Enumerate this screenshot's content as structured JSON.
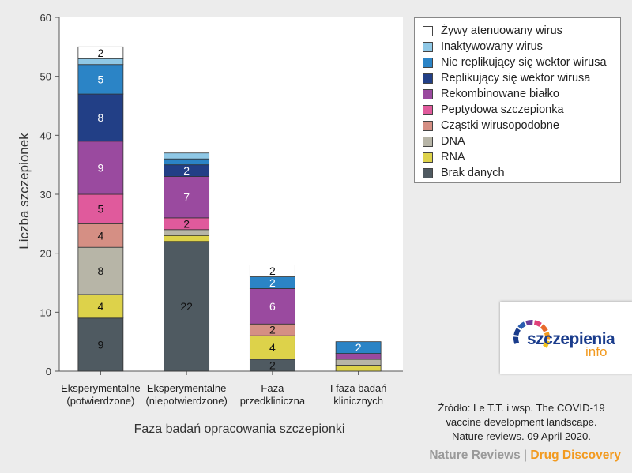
{
  "chart_data": {
    "type": "bar",
    "stacked": true,
    "xlabel": "Faza badań opracowania szczepionki",
    "ylabel": "Liczba szczepionek",
    "ylim": [
      0,
      60
    ],
    "yticks": [
      0,
      10,
      20,
      30,
      40,
      50,
      60
    ],
    "categories": [
      [
        "Eksperymentalne",
        "(potwierdzone)"
      ],
      [
        "Eksperymentalne",
        "(niepotwierdzone)"
      ],
      [
        "Faza",
        "przedkliniczna"
      ],
      [
        "I faza badań",
        "klinicznych"
      ]
    ],
    "series": [
      {
        "name": "Brak danych",
        "color": "#4f5a61",
        "values": [
          9,
          22,
          2,
          0
        ],
        "labels": [
          "9",
          "22",
          "2",
          ""
        ]
      },
      {
        "name": "RNA",
        "color": "#ddd24a",
        "values": [
          4,
          1,
          4,
          1
        ],
        "labels": [
          "4",
          "",
          "4",
          ""
        ]
      },
      {
        "name": "DNA",
        "color": "#b7b5a7",
        "values": [
          8,
          1,
          0,
          1
        ],
        "labels": [
          "8",
          "",
          "",
          ""
        ]
      },
      {
        "name": "Cząstki wirusopodobne",
        "color": "#d58f84",
        "values": [
          4,
          0,
          2,
          0
        ],
        "labels": [
          "4",
          "",
          "2",
          ""
        ]
      },
      {
        "name": "Peptydowa szczepionka",
        "color": "#e05a9c",
        "values": [
          5,
          2,
          0,
          0
        ],
        "labels": [
          "5",
          "2",
          "",
          ""
        ]
      },
      {
        "name": "Rekombinowane białko",
        "color": "#9a4a9f",
        "values": [
          9,
          7,
          6,
          1
        ],
        "labels": [
          "9",
          "7",
          "6",
          ""
        ]
      },
      {
        "name": "Replikujący się wektor wirusa",
        "color": "#223f86",
        "values": [
          8,
          2,
          0,
          0
        ],
        "labels": [
          "8",
          "2",
          "",
          ""
        ]
      },
      {
        "name": "Nie replikujący się wektor wirusa",
        "color": "#2b84c6",
        "values": [
          5,
          1,
          2,
          2
        ],
        "labels": [
          "5",
          "",
          "2",
          "2"
        ]
      },
      {
        "name": "Inaktywowany wirus",
        "color": "#8fc8e6",
        "values": [
          1,
          1,
          0,
          0
        ],
        "labels": [
          "",
          "",
          "",
          ""
        ]
      },
      {
        "name": "Żywy atenuowany wirus",
        "color": "#ffffff",
        "values": [
          2,
          0,
          2,
          0
        ],
        "labels": [
          "2",
          "",
          "2",
          ""
        ]
      }
    ],
    "legend_position": "top-right"
  },
  "logo": {
    "main": "szczepienia",
    "sub": "info"
  },
  "source_lines": [
    "Źródło: Le T.T. i wsp. The COVID-19",
    "vaccine development landscape.",
    "Nature reviews. 09 April 2020."
  ],
  "footer": {
    "left": "Nature Reviews",
    "separator": "|",
    "right": "Drug Discovery"
  }
}
